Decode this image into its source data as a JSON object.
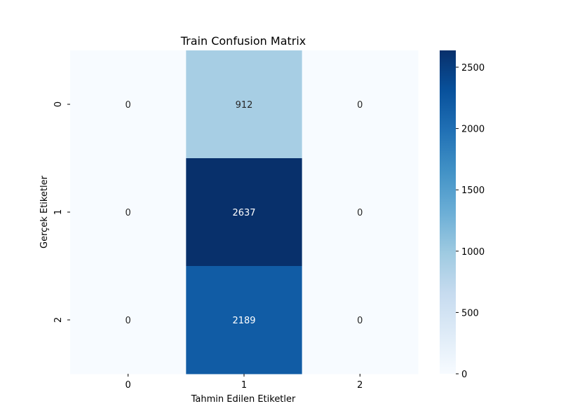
{
  "chart_data": {
    "type": "heatmap",
    "title": "Train Confusion Matrix",
    "xlabel": "Tahmin Edilen Etiketler",
    "ylabel": "Gerçek Etiketler",
    "x_categories": [
      "0",
      "1",
      "2"
    ],
    "y_categories": [
      "0",
      "1",
      "2"
    ],
    "values": [
      [
        0,
        912,
        0
      ],
      [
        0,
        2637,
        0
      ],
      [
        0,
        2189,
        0
      ]
    ],
    "colormap": "Blues",
    "colorbar": {
      "range": [
        0,
        2637
      ],
      "ticks": [
        0,
        500,
        1000,
        1500,
        2000,
        2500
      ],
      "tick_labels": [
        "0",
        "500",
        "1000",
        "1500",
        "2000",
        "2500"
      ]
    },
    "grid": false,
    "legend": "colorbar-right"
  }
}
